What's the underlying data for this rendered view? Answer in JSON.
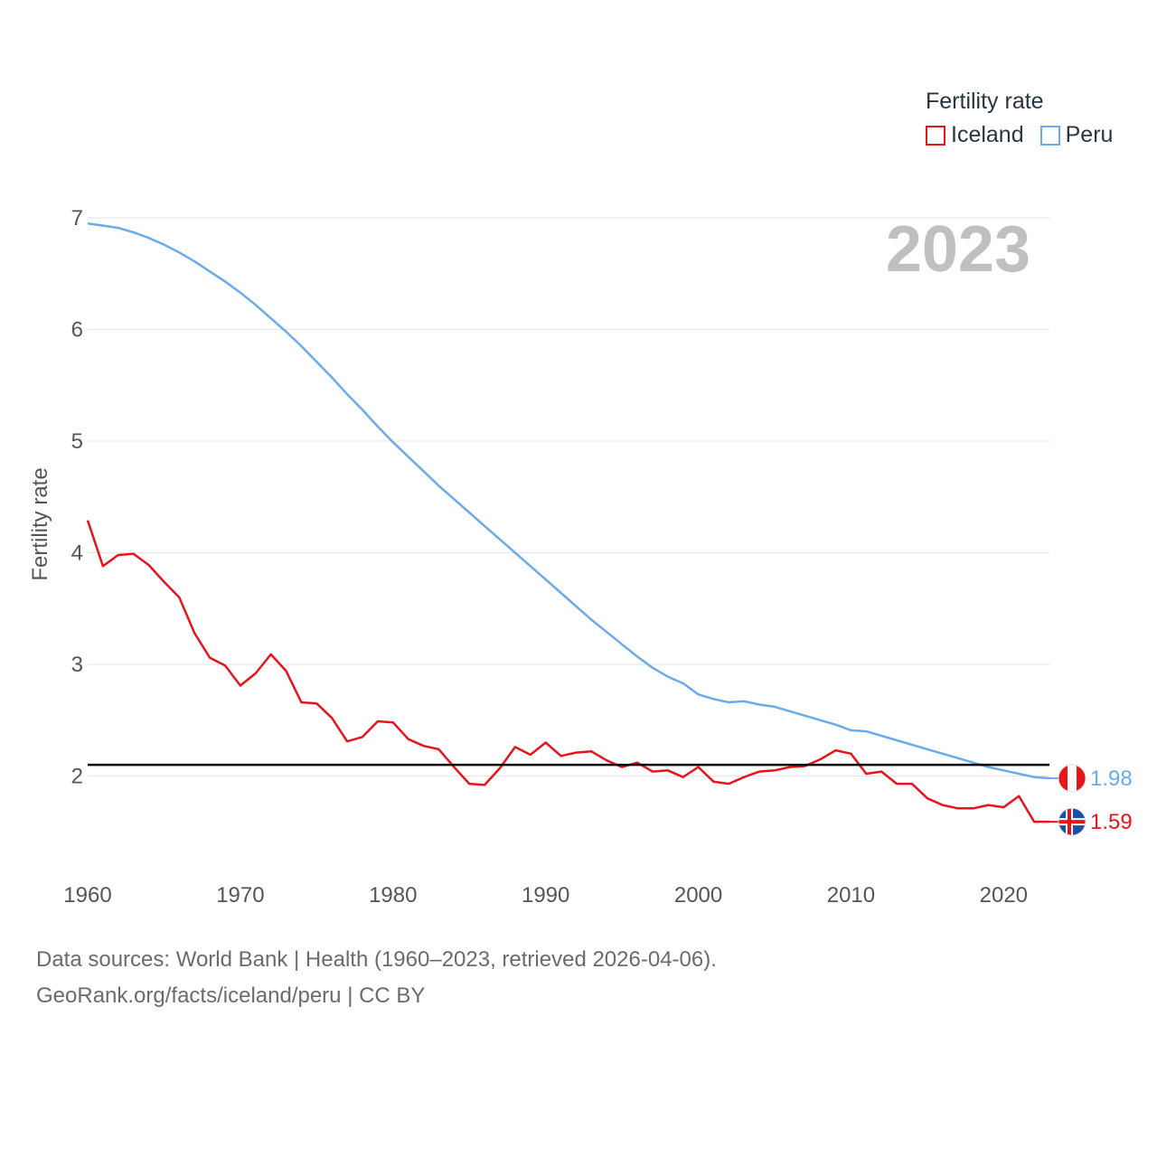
{
  "legend": {
    "title": "Fertility rate",
    "items": [
      {
        "label": "Iceland",
        "color": "#e8141c"
      },
      {
        "label": "Peru",
        "color": "#6aabea"
      }
    ]
  },
  "footer": {
    "line1": "Data sources: World Bank | Health (1960–2023, retrieved 2026-04-06).",
    "line2": "GeoRank.org/facts/iceland/peru | CC BY"
  },
  "chart_data": {
    "type": "line",
    "title": "Fertility rate",
    "year_label": "2023",
    "ylabel": "Fertility rate",
    "xlabel": "",
    "xlim": [
      1960,
      2023
    ],
    "ylim": [
      1.3,
      7.0
    ],
    "xticks": [
      1960,
      1970,
      1980,
      1990,
      2000,
      2010,
      2020
    ],
    "yticks": [
      2,
      3,
      4,
      5,
      6,
      7
    ],
    "reference_line": 2.1,
    "x": [
      1960,
      1961,
      1962,
      1963,
      1964,
      1965,
      1966,
      1967,
      1968,
      1969,
      1970,
      1971,
      1972,
      1973,
      1974,
      1975,
      1976,
      1977,
      1978,
      1979,
      1980,
      1981,
      1982,
      1983,
      1984,
      1985,
      1986,
      1987,
      1988,
      1989,
      1990,
      1991,
      1992,
      1993,
      1994,
      1995,
      1996,
      1997,
      1998,
      1999,
      2000,
      2001,
      2002,
      2003,
      2004,
      2005,
      2006,
      2007,
      2008,
      2009,
      2010,
      2011,
      2012,
      2013,
      2014,
      2015,
      2016,
      2017,
      2018,
      2019,
      2020,
      2021,
      2022,
      2023
    ],
    "series": [
      {
        "name": "Iceland",
        "color": "#e8141c",
        "end_value_label": "1.59",
        "values": [
          4.29,
          3.88,
          3.98,
          3.99,
          3.89,
          3.74,
          3.6,
          3.28,
          3.06,
          2.99,
          2.81,
          2.92,
          3.09,
          2.94,
          2.66,
          2.65,
          2.52,
          2.31,
          2.35,
          2.49,
          2.48,
          2.33,
          2.27,
          2.24,
          2.08,
          1.93,
          1.92,
          2.07,
          2.26,
          2.19,
          2.3,
          2.18,
          2.21,
          2.22,
          2.14,
          2.08,
          2.12,
          2.04,
          2.05,
          1.99,
          2.08,
          1.95,
          1.93,
          1.99,
          2.04,
          2.05,
          2.08,
          2.09,
          2.15,
          2.23,
          2.2,
          2.02,
          2.04,
          1.93,
          1.93,
          1.8,
          1.74,
          1.71,
          1.71,
          1.74,
          1.72,
          1.82,
          1.59,
          1.59
        ]
      },
      {
        "name": "Peru",
        "color": "#6aabea",
        "end_value_label": "1.98",
        "values": [
          6.95,
          6.93,
          6.91,
          6.87,
          6.82,
          6.76,
          6.69,
          6.61,
          6.52,
          6.43,
          6.33,
          6.22,
          6.1,
          5.98,
          5.85,
          5.71,
          5.57,
          5.42,
          5.28,
          5.13,
          4.99,
          4.86,
          4.73,
          4.6,
          4.48,
          4.36,
          4.24,
          4.12,
          4.0,
          3.88,
          3.76,
          3.64,
          3.52,
          3.4,
          3.29,
          3.18,
          3.07,
          2.97,
          2.89,
          2.83,
          2.73,
          2.69,
          2.66,
          2.67,
          2.64,
          2.62,
          2.58,
          2.54,
          2.5,
          2.46,
          2.41,
          2.4,
          2.36,
          2.32,
          2.28,
          2.24,
          2.2,
          2.16,
          2.12,
          2.08,
          2.05,
          2.02,
          1.99,
          1.98
        ]
      }
    ]
  }
}
